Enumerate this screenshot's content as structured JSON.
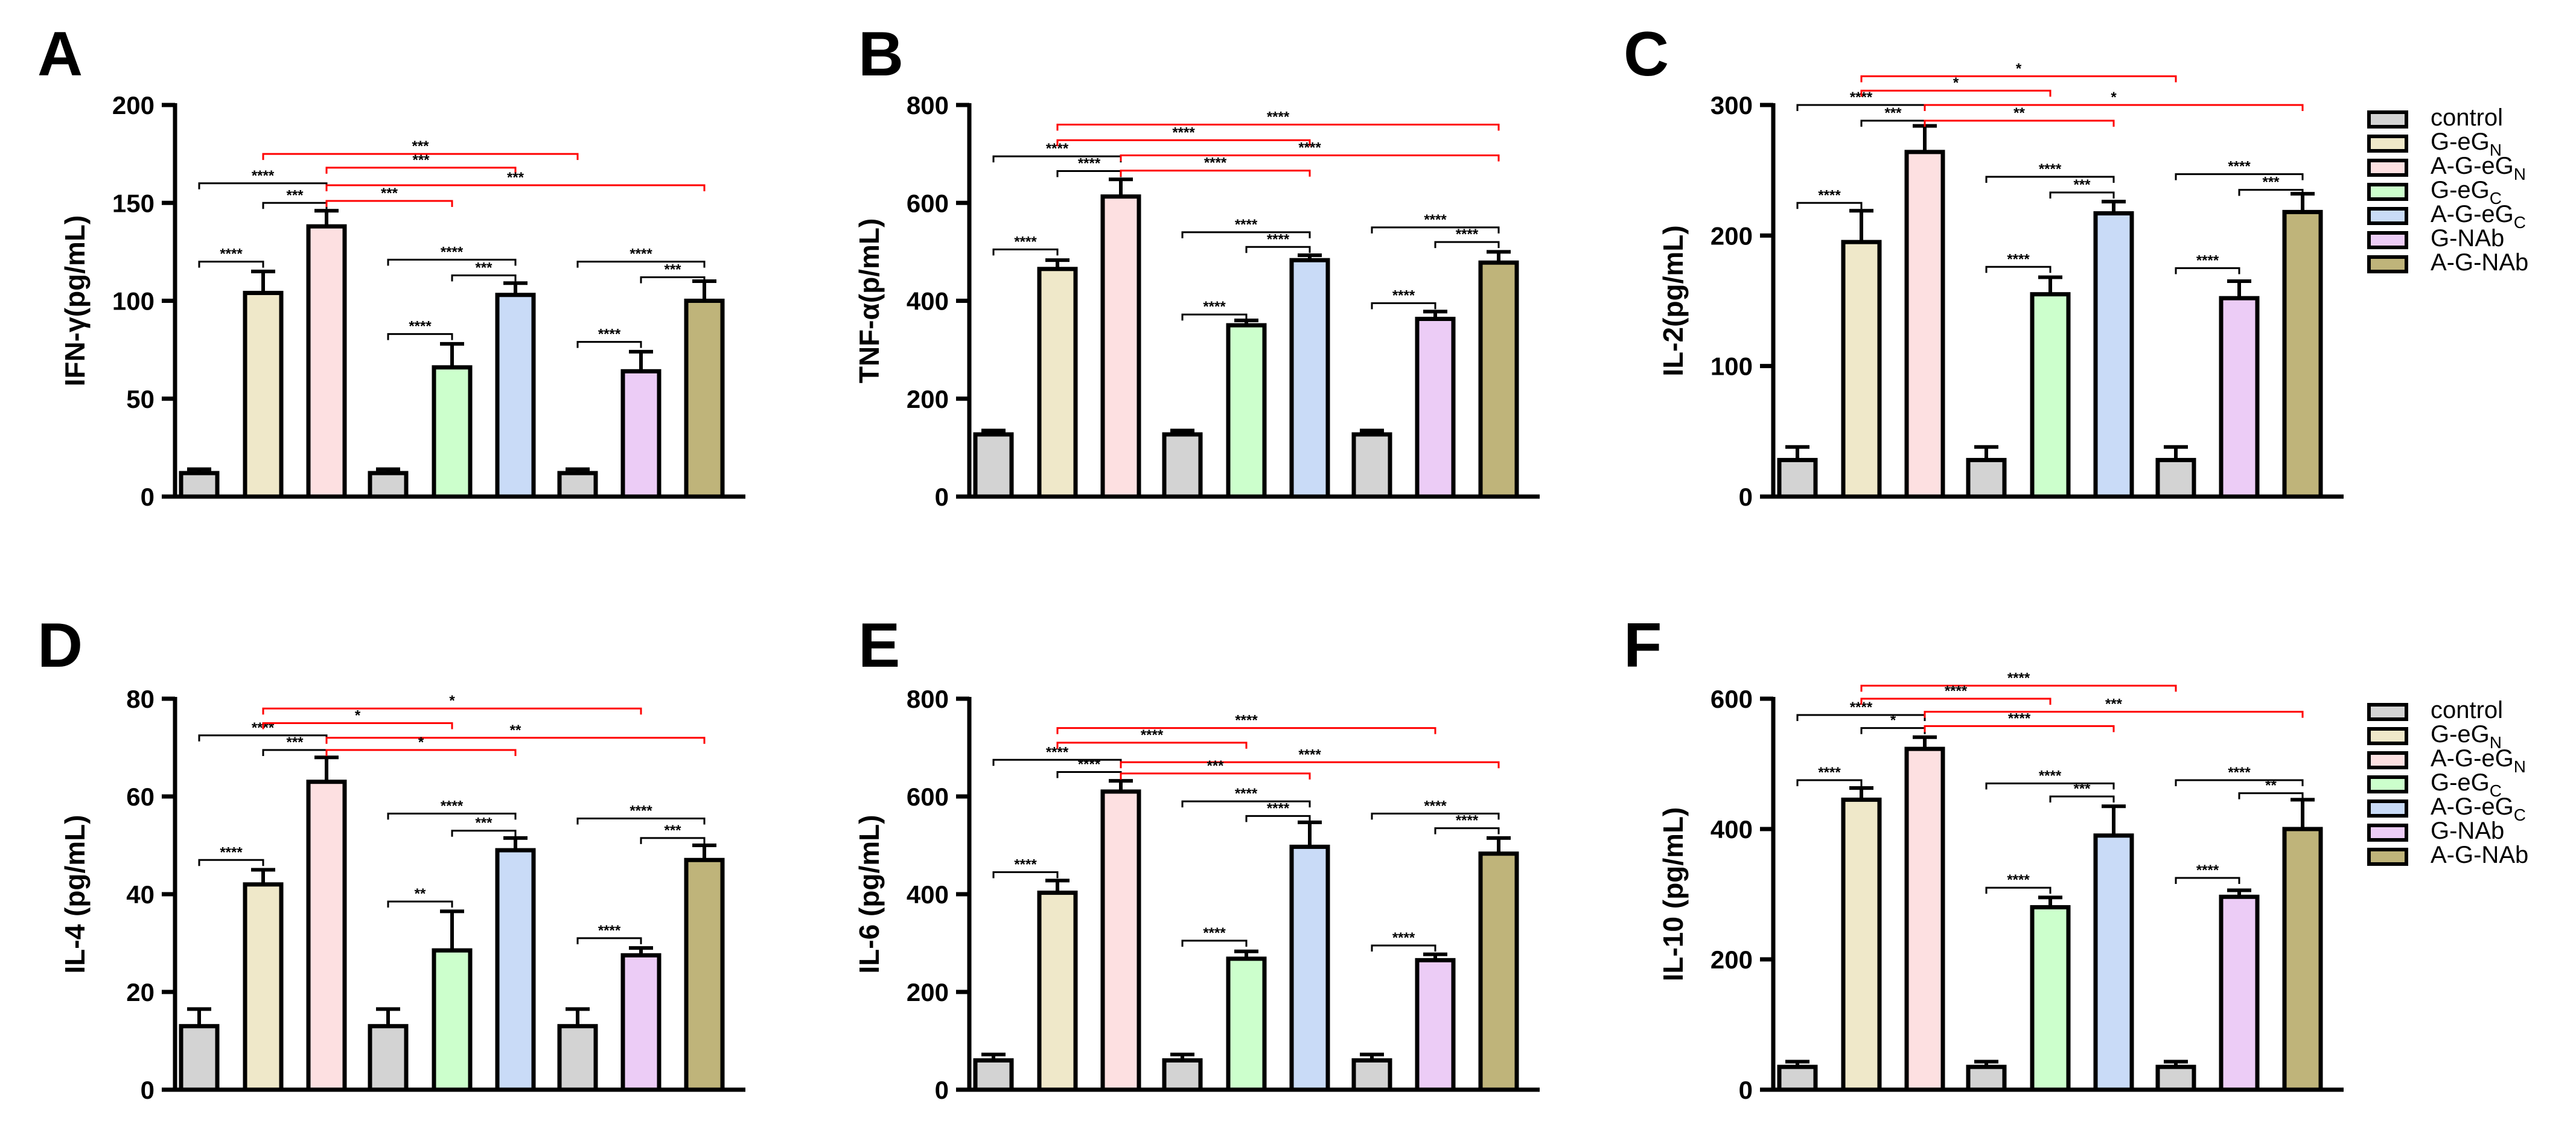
{
  "legend_entries": [
    {
      "label": "control",
      "sub": "",
      "color": "#d3d3d3"
    },
    {
      "label": "G-eG",
      "sub": "N",
      "color": "#efe8c9"
    },
    {
      "label": "A-G-eG",
      "sub": "N",
      "color": "#fde0e1"
    },
    {
      "label": "G-eG",
      "sub": "C",
      "color": "#ccffcc"
    },
    {
      "label": "A-G-eG",
      "sub": "C",
      "color": "#c9dbf7"
    },
    {
      "label": "G-NAb",
      "sub": "",
      "color": "#ecccf6"
    },
    {
      "label": "A-G-NAb",
      "sub": "",
      "color": "#bfb47a"
    }
  ],
  "colors": {
    "axis": "#000000",
    "bar_outline": "#000000",
    "within_group_bracket": "#000000",
    "between_group_bracket": "#ff0000"
  },
  "chart_data": [
    {
      "panel": "A",
      "type": "bar",
      "ylabel": "IFN-γ(pg/mL)",
      "ylim": [
        0,
        200
      ],
      "yticks": [
        "0",
        "50",
        "100",
        "150",
        "200"
      ],
      "grid": false,
      "bar_colors": [
        "#d3d3d3",
        "#efe8c9",
        "#fde0e1",
        "#d3d3d3",
        "#ccffcc",
        "#c9dbf7",
        "#d3d3d3",
        "#ecccf6",
        "#bfb47a"
      ],
      "values": [
        12,
        104,
        138,
        12,
        66,
        103,
        12,
        64,
        100
      ],
      "errors": [
        2,
        11,
        8,
        2,
        12,
        6,
        2,
        10,
        10
      ],
      "comparisons": [
        {
          "from": 0,
          "to": 1,
          "label": "****",
          "color": "black",
          "level": 120
        },
        {
          "from": 0,
          "to": 2,
          "label": "****",
          "color": "black",
          "level": 160
        },
        {
          "from": 1,
          "to": 2,
          "label": "***",
          "color": "black",
          "level": 150
        },
        {
          "from": 1,
          "to": 6,
          "label": "***",
          "color": "red",
          "level": 175
        },
        {
          "from": 2,
          "to": 5,
          "label": "***",
          "color": "red",
          "level": 168
        },
        {
          "from": 2,
          "to": 8,
          "label": "***",
          "color": "red",
          "level": 159
        },
        {
          "from": 2,
          "to": 4,
          "label": "***",
          "color": "red",
          "level": 151
        },
        {
          "from": 3,
          "to": 4,
          "label": "****",
          "color": "black",
          "level": 83
        },
        {
          "from": 3,
          "to": 5,
          "label": "****",
          "color": "black",
          "level": 121
        },
        {
          "from": 4,
          "to": 5,
          "label": "***",
          "color": "black",
          "level": 113
        },
        {
          "from": 6,
          "to": 7,
          "label": "****",
          "color": "black",
          "level": 79
        },
        {
          "from": 6,
          "to": 8,
          "label": "****",
          "color": "black",
          "level": 120
        },
        {
          "from": 7,
          "to": 8,
          "label": "***",
          "color": "black",
          "level": 112
        }
      ]
    },
    {
      "panel": "B",
      "type": "bar",
      "ylabel": "TNF-α(p/mL)",
      "ylim": [
        0,
        800
      ],
      "yticks": [
        "0",
        "200",
        "400",
        "600",
        "800"
      ],
      "grid": false,
      "bar_colors": [
        "#d3d3d3",
        "#efe8c9",
        "#fde0e1",
        "#d3d3d3",
        "#ccffcc",
        "#c9dbf7",
        "#d3d3d3",
        "#ecccf6",
        "#bfb47a"
      ],
      "values": [
        127,
        465,
        613,
        127,
        350,
        483,
        127,
        363,
        478
      ],
      "errors": [
        8,
        18,
        35,
        8,
        10,
        10,
        8,
        15,
        22
      ],
      "comparisons": [
        {
          "from": 0,
          "to": 1,
          "label": "****",
          "color": "black",
          "level": 505
        },
        {
          "from": 0,
          "to": 2,
          "label": "****",
          "color": "black",
          "level": 695
        },
        {
          "from": 1,
          "to": 2,
          "label": "****",
          "color": "black",
          "level": 665
        },
        {
          "from": 1,
          "to": 8,
          "label": "****",
          "color": "red",
          "level": 760
        },
        {
          "from": 1,
          "to": 5,
          "label": "****",
          "color": "red",
          "level": 728
        },
        {
          "from": 2,
          "to": 8,
          "label": "****",
          "color": "red",
          "level": 697
        },
        {
          "from": 2,
          "to": 5,
          "label": "****",
          "color": "red",
          "level": 666
        },
        {
          "from": 3,
          "to": 4,
          "label": "****",
          "color": "black",
          "level": 372
        },
        {
          "from": 3,
          "to": 5,
          "label": "****",
          "color": "black",
          "level": 540
        },
        {
          "from": 4,
          "to": 5,
          "label": "****",
          "color": "black",
          "level": 510
        },
        {
          "from": 6,
          "to": 7,
          "label": "****",
          "color": "black",
          "level": 395
        },
        {
          "from": 6,
          "to": 8,
          "label": "****",
          "color": "black",
          "level": 550
        },
        {
          "from": 7,
          "to": 8,
          "label": "****",
          "color": "black",
          "level": 520
        }
      ]
    },
    {
      "panel": "C",
      "type": "bar",
      "ylabel": "IL-2(pg/mL)",
      "ylim": [
        0,
        300
      ],
      "yticks": [
        "0",
        "100",
        "200",
        "300"
      ],
      "grid": false,
      "bar_colors": [
        "#d3d3d3",
        "#efe8c9",
        "#fde0e1",
        "#d3d3d3",
        "#ccffcc",
        "#c9dbf7",
        "#d3d3d3",
        "#ecccf6",
        "#bfb47a"
      ],
      "values": [
        28,
        195,
        264,
        28,
        155,
        217,
        28,
        152,
        218
      ],
      "errors": [
        10,
        24,
        20,
        10,
        13,
        9,
        10,
        13,
        14
      ],
      "comparisons": [
        {
          "from": 0,
          "to": 1,
          "label": "****",
          "color": "black",
          "level": 225
        },
        {
          "from": 0,
          "to": 2,
          "label": "****",
          "color": "black",
          "level": 300
        },
        {
          "from": 1,
          "to": 2,
          "label": "***",
          "color": "black",
          "level": 288
        },
        {
          "from": 1,
          "to": 6,
          "label": "*",
          "color": "red",
          "level": 322
        },
        {
          "from": 1,
          "to": 4,
          "label": "*",
          "color": "red",
          "level": 311
        },
        {
          "from": 2,
          "to": 8,
          "label": "*",
          "color": "red",
          "level": 300
        },
        {
          "from": 2,
          "to": 5,
          "label": "**",
          "color": "red",
          "level": 288
        },
        {
          "from": 3,
          "to": 4,
          "label": "****",
          "color": "black",
          "level": 176
        },
        {
          "from": 3,
          "to": 5,
          "label": "****",
          "color": "black",
          "level": 245
        },
        {
          "from": 4,
          "to": 5,
          "label": "***",
          "color": "black",
          "level": 233
        },
        {
          "from": 6,
          "to": 7,
          "label": "****",
          "color": "black",
          "level": 175
        },
        {
          "from": 6,
          "to": 8,
          "label": "****",
          "color": "black",
          "level": 247
        },
        {
          "from": 7,
          "to": 8,
          "label": "***",
          "color": "black",
          "level": 235
        }
      ]
    },
    {
      "panel": "D",
      "type": "bar",
      "ylabel": "IL-4 (pg/mL)",
      "ylim": [
        0,
        80
      ],
      "yticks": [
        "0",
        "20",
        "40",
        "60",
        "80"
      ],
      "grid": false,
      "bar_colors": [
        "#d3d3d3",
        "#efe8c9",
        "#fde0e1",
        "#d3d3d3",
        "#ccffcc",
        "#c9dbf7",
        "#d3d3d3",
        "#ecccf6",
        "#bfb47a"
      ],
      "values": [
        13,
        42,
        63,
        13,
        28.5,
        49,
        13,
        27.5,
        47
      ],
      "errors": [
        3.5,
        3,
        5,
        3.5,
        8,
        2.5,
        3.5,
        1.5,
        3
      ],
      "comparisons": [
        {
          "from": 0,
          "to": 1,
          "label": "****",
          "color": "black",
          "level": 47
        },
        {
          "from": 0,
          "to": 2,
          "label": "****",
          "color": "black",
          "level": 72.5
        },
        {
          "from": 1,
          "to": 2,
          "label": "***",
          "color": "black",
          "level": 69.5
        },
        {
          "from": 1,
          "to": 7,
          "label": "*",
          "color": "red",
          "level": 78
        },
        {
          "from": 1,
          "to": 4,
          "label": "*",
          "color": "red",
          "level": 75
        },
        {
          "from": 2,
          "to": 8,
          "label": "**",
          "color": "red",
          "level": 72
        },
        {
          "from": 2,
          "to": 5,
          "label": "*",
          "color": "red",
          "level": 69.5
        },
        {
          "from": 3,
          "to": 4,
          "label": "**",
          "color": "black",
          "level": 38.5
        },
        {
          "from": 3,
          "to": 5,
          "label": "****",
          "color": "black",
          "level": 56.5
        },
        {
          "from": 4,
          "to": 5,
          "label": "***",
          "color": "black",
          "level": 53
        },
        {
          "from": 6,
          "to": 7,
          "label": "****",
          "color": "black",
          "level": 31
        },
        {
          "from": 6,
          "to": 8,
          "label": "****",
          "color": "black",
          "level": 55.5
        },
        {
          "from": 7,
          "to": 8,
          "label": "***",
          "color": "black",
          "level": 51.5
        }
      ]
    },
    {
      "panel": "E",
      "type": "bar",
      "ylabel": "IL-6 (pg/mL)",
      "ylim": [
        0,
        800
      ],
      "yticks": [
        "0",
        "200",
        "400",
        "600",
        "800"
      ],
      "grid": false,
      "bar_colors": [
        "#d3d3d3",
        "#efe8c9",
        "#fde0e1",
        "#d3d3d3",
        "#ccffcc",
        "#c9dbf7",
        "#d3d3d3",
        "#ecccf6",
        "#bfb47a"
      ],
      "values": [
        60,
        403,
        610,
        60,
        268,
        497,
        60,
        265,
        483
      ],
      "errors": [
        12,
        25,
        22,
        12,
        15,
        50,
        12,
        12,
        32
      ],
      "comparisons": [
        {
          "from": 0,
          "to": 1,
          "label": "****",
          "color": "black",
          "level": 445
        },
        {
          "from": 0,
          "to": 2,
          "label": "****",
          "color": "black",
          "level": 675
        },
        {
          "from": 1,
          "to": 2,
          "label": "****",
          "color": "black",
          "level": 650
        },
        {
          "from": 1,
          "to": 7,
          "label": "****",
          "color": "red",
          "level": 740
        },
        {
          "from": 1,
          "to": 4,
          "label": "****",
          "color": "red",
          "level": 710
        },
        {
          "from": 2,
          "to": 8,
          "label": "****",
          "color": "red",
          "level": 670
        },
        {
          "from": 2,
          "to": 5,
          "label": "***",
          "color": "red",
          "level": 647
        },
        {
          "from": 3,
          "to": 4,
          "label": "****",
          "color": "black",
          "level": 305
        },
        {
          "from": 3,
          "to": 5,
          "label": "****",
          "color": "black",
          "level": 590
        },
        {
          "from": 4,
          "to": 5,
          "label": "****",
          "color": "black",
          "level": 560
        },
        {
          "from": 6,
          "to": 7,
          "label": "****",
          "color": "black",
          "level": 295
        },
        {
          "from": 6,
          "to": 8,
          "label": "****",
          "color": "black",
          "level": 565
        },
        {
          "from": 7,
          "to": 8,
          "label": "****",
          "color": "black",
          "level": 535
        }
      ]
    },
    {
      "panel": "F",
      "type": "bar",
      "ylabel": "IL-10 (pg/mL)",
      "ylim": [
        0,
        600
      ],
      "yticks": [
        "0",
        "200",
        "400",
        "600"
      ],
      "grid": false,
      "bar_colors": [
        "#d3d3d3",
        "#efe8c9",
        "#fde0e1",
        "#d3d3d3",
        "#ccffcc",
        "#c9dbf7",
        "#d3d3d3",
        "#ecccf6",
        "#bfb47a"
      ],
      "values": [
        35,
        445,
        523,
        35,
        280,
        390,
        35,
        296,
        400
      ],
      "errors": [
        8,
        18,
        18,
        8,
        15,
        45,
        8,
        10,
        45
      ],
      "comparisons": [
        {
          "from": 0,
          "to": 1,
          "label": "****",
          "color": "black",
          "level": 475
        },
        {
          "from": 0,
          "to": 2,
          "label": "****",
          "color": "black",
          "level": 575
        },
        {
          "from": 1,
          "to": 2,
          "label": "*",
          "color": "black",
          "level": 555
        },
        {
          "from": 1,
          "to": 6,
          "label": "****",
          "color": "red",
          "level": 620
        },
        {
          "from": 1,
          "to": 4,
          "label": "****",
          "color": "red",
          "level": 600
        },
        {
          "from": 2,
          "to": 8,
          "label": "***",
          "color": "red",
          "level": 580
        },
        {
          "from": 2,
          "to": 5,
          "label": "****",
          "color": "red",
          "level": 558
        },
        {
          "from": 3,
          "to": 4,
          "label": "****",
          "color": "black",
          "level": 310
        },
        {
          "from": 3,
          "to": 5,
          "label": "****",
          "color": "black",
          "level": 470
        },
        {
          "from": 4,
          "to": 5,
          "label": "***",
          "color": "black",
          "level": 450
        },
        {
          "from": 6,
          "to": 7,
          "label": "****",
          "color": "black",
          "level": 325
        },
        {
          "from": 6,
          "to": 8,
          "label": "****",
          "color": "black",
          "level": 475
        },
        {
          "from": 7,
          "to": 8,
          "label": "**",
          "color": "black",
          "level": 455
        }
      ]
    }
  ]
}
